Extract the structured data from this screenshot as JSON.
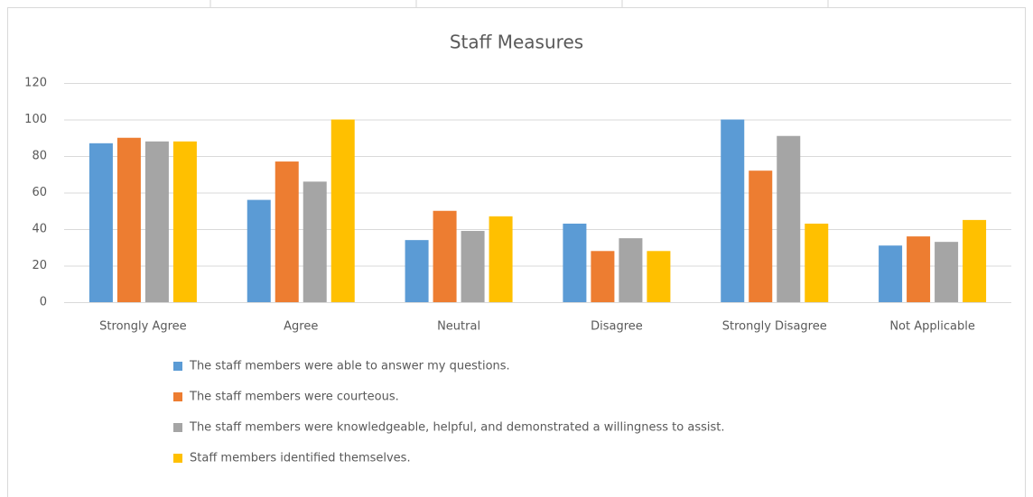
{
  "chart_data": {
    "type": "bar",
    "title": "Staff Measures",
    "categories": [
      "Strongly Agree",
      "Agree",
      "Neutral",
      "Disagree",
      "Strongly Disagree",
      "Not Applicable"
    ],
    "series": [
      {
        "name": "The staff members were able to answer my questions.",
        "color": "#5b9bd5",
        "values": [
          87,
          56,
          34,
          43,
          100,
          31
        ]
      },
      {
        "name": "The staff members were courteous.",
        "color": "#ed7d31",
        "values": [
          90,
          77,
          50,
          28,
          72,
          36
        ]
      },
      {
        "name": "The staff members were knowledgeable, helpful, and demonstrated a willingness to assist.",
        "color": "#a5a5a5",
        "values": [
          88,
          66,
          39,
          35,
          91,
          33
        ]
      },
      {
        "name": "Staff members identified themselves.",
        "color": "#ffc000",
        "values": [
          88,
          100,
          47,
          28,
          43,
          45
        ]
      }
    ],
    "ylim": [
      0,
      120
    ],
    "yticks": [
      0,
      20,
      40,
      60,
      80,
      100,
      120
    ],
    "grid": true,
    "legend": "bottom"
  }
}
